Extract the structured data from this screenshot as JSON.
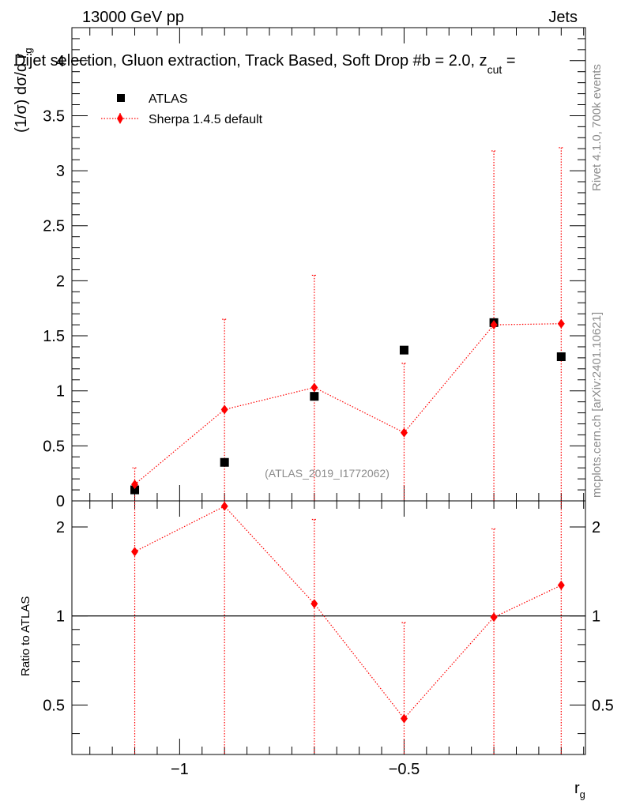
{
  "header": {
    "left": "13000 GeV pp",
    "right": "Jets",
    "title_main": "Dijet selection, Gluon extraction, Track Based, Soft Drop #b = 2.0, z",
    "title_sub": "cut",
    "title_end": " ="
  },
  "side_text": {
    "rivet": "Rivet 4.1.0,  700k events",
    "mcplots": "mcplots.cern.ch [arXiv:2401.10621]"
  },
  "watermark": "(ATLAS_2019_I1772062)",
  "colors": {
    "mc": "#ff0000",
    "data": "#000000",
    "grey": "#8c8c8c"
  },
  "chart_data": [
    {
      "type": "scatter",
      "panel": "main",
      "ylabel_main": "(1/σ) dσ/d r",
      "ylabel_sub": "g",
      "xlim": [
        -1.24,
        -0.096
      ],
      "ylim": [
        0,
        4.3
      ],
      "yticks": [
        0,
        0.5,
        1,
        1.5,
        2,
        2.5,
        3,
        3.5,
        4
      ],
      "ytick_labels": [
        "0",
        "0.5",
        "1",
        "1.5",
        "2",
        "2.5",
        "3",
        "3.5",
        "4"
      ],
      "legend": {
        "position": "top-left",
        "entries": [
          "ATLAS",
          "Sherpa 1.4.5 default"
        ]
      },
      "series": [
        {
          "name": "ATLAS",
          "style": "square",
          "x": [
            -1.1,
            -0.9,
            -0.7,
            -0.5,
            -0.3,
            -0.15
          ],
          "y": [
            0.1,
            0.35,
            0.95,
            1.37,
            1.62,
            1.31
          ]
        },
        {
          "name": "Sherpa 1.4.5 default",
          "style": "diamond-dotted",
          "x": [
            -1.1,
            -0.9,
            -0.7,
            -0.5,
            -0.3,
            -0.15
          ],
          "y": [
            0.15,
            0.83,
            1.03,
            0.62,
            1.6,
            1.61
          ],
          "err_up": [
            0.3,
            1.65,
            2.05,
            1.25,
            3.18,
            3.21
          ],
          "err_down": [
            0,
            0,
            0,
            0,
            0,
            0
          ]
        }
      ]
    },
    {
      "type": "scatter",
      "panel": "ratio",
      "ylabel": "Ratio to ATLAS",
      "xlabel_main": "r",
      "xlabel_sub": "g",
      "xlim": [
        -1.24,
        -0.096
      ],
      "ylim": [
        0.34,
        2.45
      ],
      "yticks": [
        0.5,
        1,
        2
      ],
      "ytick_labels": [
        "0.5",
        "1",
        "2"
      ],
      "xticks": [
        -1,
        -0.5
      ],
      "xtick_labels": [
        "−1",
        "−0.5"
      ],
      "reference_line": 1,
      "series": [
        {
          "name": "Sherpa 1.4.5 default",
          "x": [
            -1.1,
            -0.9,
            -0.7,
            -0.5,
            -0.3,
            -0.15
          ],
          "y": [
            1.65,
            2.35,
            1.1,
            0.45,
            0.99,
            1.27
          ],
          "err_up": [
            2.45,
            2.45,
            2.12,
            0.95,
            1.97,
            2.45
          ],
          "err_down": [
            0.34,
            0.34,
            0.34,
            0.34,
            0.34,
            0.34
          ]
        }
      ]
    }
  ]
}
